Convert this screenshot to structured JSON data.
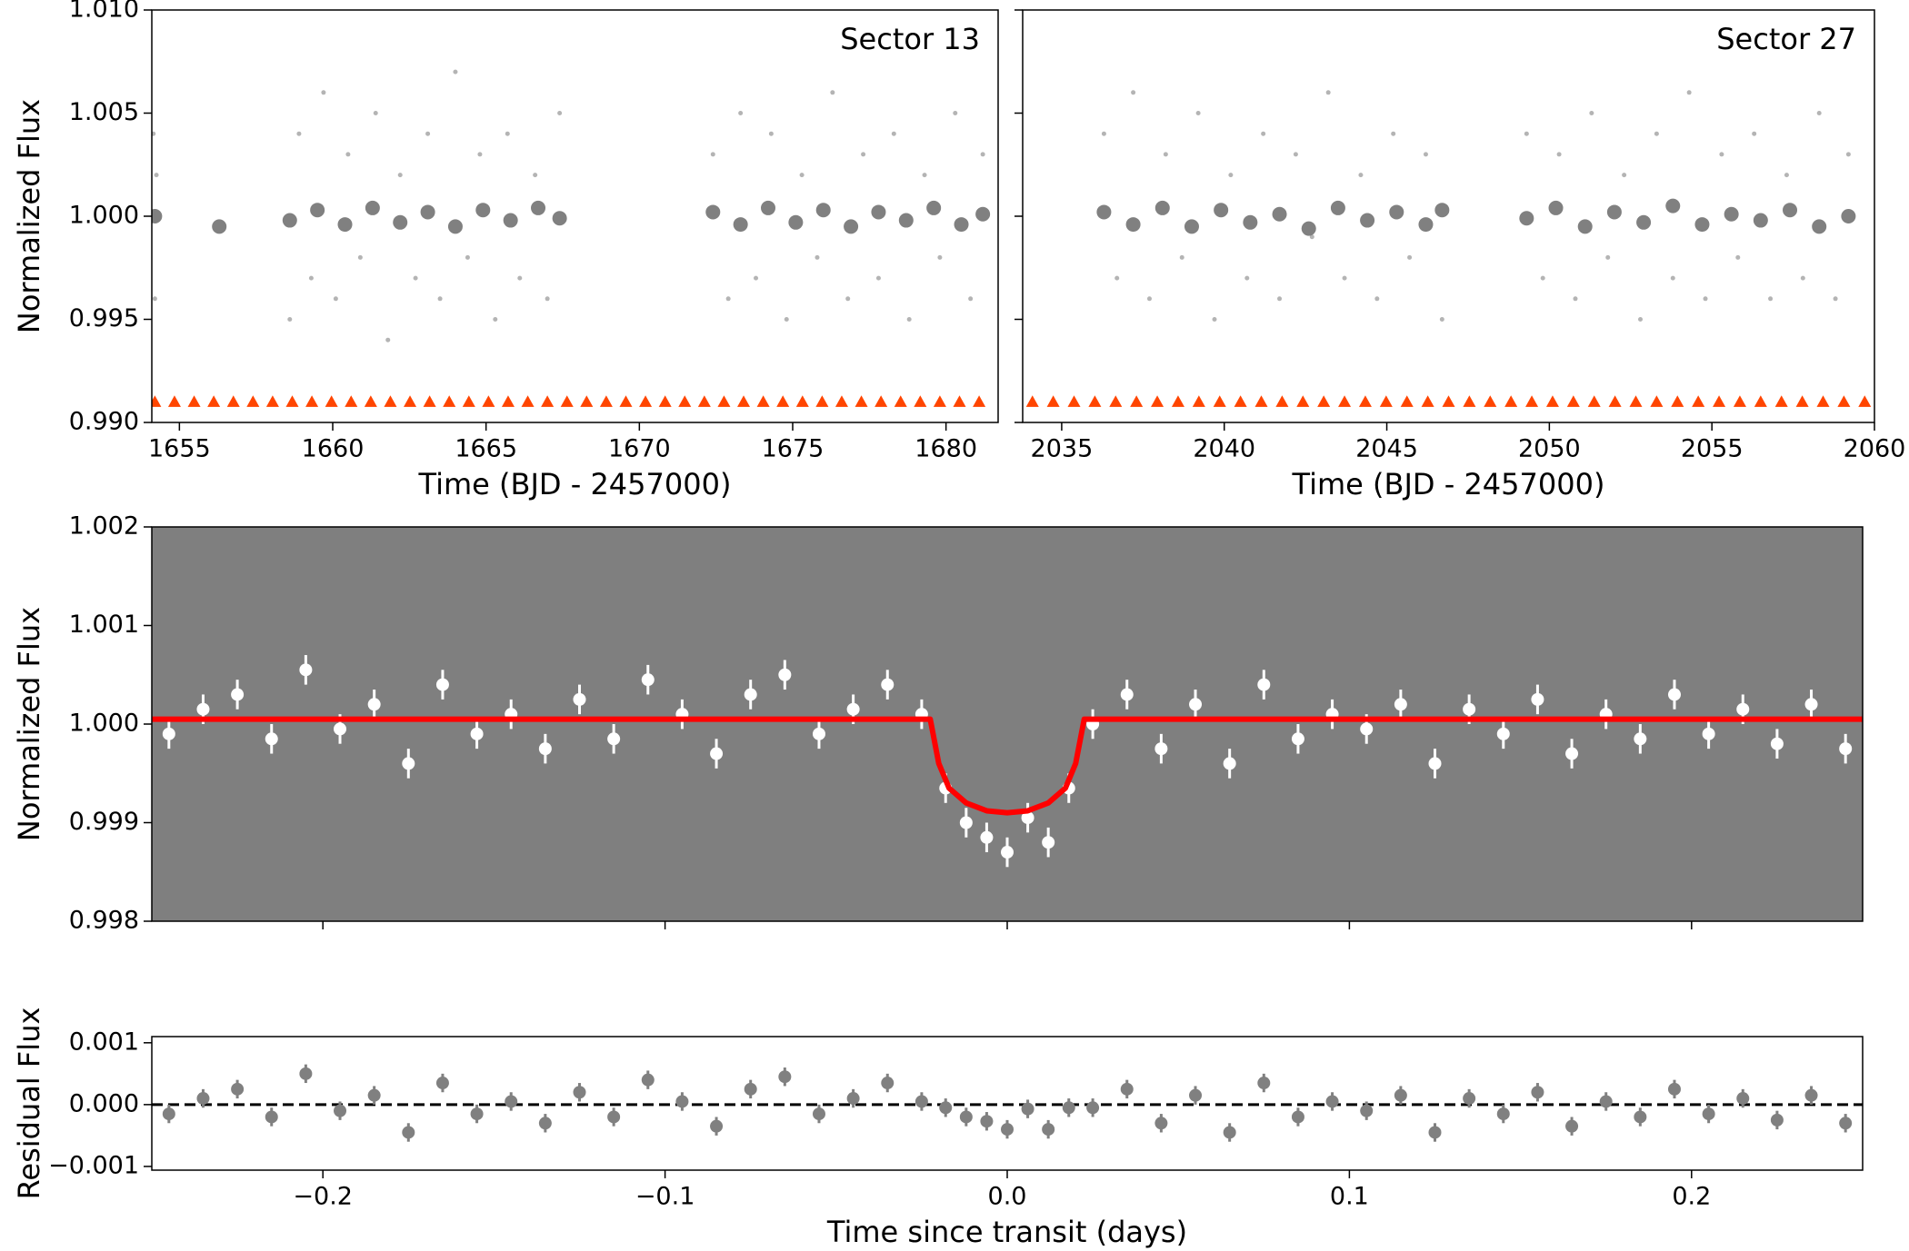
{
  "chart_data": [
    {
      "type": "scatter",
      "annotation": "Sector 13",
      "xlabel": "Time (BJD - 2457000)",
      "ylabel": "Normalized Flux",
      "xlim": [
        1654.1,
        1681.7
      ],
      "ylim": [
        0.99,
        1.01
      ],
      "xticks": [
        1655,
        1660,
        1665,
        1670,
        1675,
        1680
      ],
      "yticks": [
        {
          "value": 0.99,
          "label": "0.990"
        },
        0.995,
        {
          "value": 1.0,
          "label": "1.000"
        },
        1.005,
        {
          "value": 1.01,
          "label": "1.010"
        }
      ],
      "series": [
        {
          "marker": "o",
          "color": "#b4b4b4",
          "size": 2.5,
          "x": [
            1654.15,
            1654.2,
            1654.25,
            1658.6,
            1658.9,
            1659.3,
            1659.7,
            1660.1,
            1660.5,
            1660.9,
            1661.4,
            1661.8,
            1662.2,
            1662.7,
            1663.1,
            1663.5,
            1664.0,
            1664.4,
            1664.8,
            1665.3,
            1665.7,
            1666.1,
            1666.6,
            1667.0,
            1667.4,
            1672.4,
            1672.9,
            1673.3,
            1673.8,
            1674.3,
            1674.8,
            1675.3,
            1675.8,
            1676.3,
            1676.8,
            1677.3,
            1677.8,
            1678.3,
            1678.8,
            1679.3,
            1679.8,
            1680.3,
            1680.8,
            1681.2
          ],
          "values": [
            1.004,
            0.996,
            1.002,
            0.995,
            1.004,
            0.997,
            1.006,
            0.996,
            1.003,
            0.998,
            1.005,
            0.994,
            1.002,
            0.997,
            1.004,
            0.996,
            1.007,
            0.998,
            1.003,
            0.995,
            1.004,
            0.997,
            1.002,
            0.996,
            1.005,
            1.003,
            0.996,
            1.005,
            0.997,
            1.004,
            0.995,
            1.002,
            0.998,
            1.006,
            0.996,
            1.003,
            0.997,
            1.004,
            0.995,
            1.002,
            0.998,
            1.005,
            0.996,
            1.003
          ]
        },
        {
          "marker": "o",
          "color": "#808080",
          "size": 8,
          "x": [
            1654.2,
            1656.3,
            1658.6,
            1659.5,
            1660.4,
            1661.3,
            1662.2,
            1663.1,
            1664.0,
            1664.9,
            1665.8,
            1666.7,
            1667.4,
            1672.4,
            1673.3,
            1674.2,
            1675.1,
            1676.0,
            1676.9,
            1677.8,
            1678.7,
            1679.6,
            1680.5,
            1681.2
          ],
          "values": [
            1.0,
            0.9995,
            0.9998,
            1.0003,
            0.9996,
            1.0004,
            0.9997,
            1.0002,
            0.9995,
            1.0003,
            0.9998,
            1.0004,
            0.9999,
            1.0002,
            0.9996,
            1.0004,
            0.9997,
            1.0003,
            0.9995,
            1.0002,
            0.9998,
            1.0004,
            0.9996,
            1.0001
          ]
        },
        {
          "marker": "^",
          "color": "#ff4500",
          "size": 7,
          "level": 0.991,
          "x": [
            1654.2,
            1654.84,
            1655.48,
            1656.12,
            1656.76,
            1657.4,
            1658.04,
            1658.68,
            1659.32,
            1659.96,
            1660.6,
            1661.24,
            1661.88,
            1662.52,
            1663.16,
            1663.8,
            1664.44,
            1665.08,
            1665.72,
            1666.36,
            1667.0,
            1667.64,
            1668.28,
            1668.92,
            1669.56,
            1670.2,
            1670.84,
            1671.48,
            1672.12,
            1672.76,
            1673.4,
            1674.04,
            1674.68,
            1675.32,
            1675.96,
            1676.6,
            1677.24,
            1677.88,
            1678.52,
            1679.16,
            1679.8,
            1680.44,
            1681.08
          ]
        }
      ]
    },
    {
      "type": "scatter",
      "annotation": "Sector 27",
      "xlabel": "Time (BJD - 2457000)",
      "xlim": [
        2033.8,
        2060
      ],
      "ylim": [
        0.99,
        1.01
      ],
      "xticks": [
        2035,
        2040,
        2045,
        2050,
        2055,
        2060
      ],
      "yticks": [
        0.99,
        0.995,
        1.0,
        1.005,
        1.01
      ],
      "series": [
        {
          "marker": "o",
          "color": "#b4b4b4",
          "size": 2.5,
          "x": [
            2036.3,
            2036.7,
            2037.2,
            2037.7,
            2038.2,
            2038.7,
            2039.2,
            2039.7,
            2040.2,
            2040.7,
            2041.2,
            2041.7,
            2042.2,
            2042.7,
            2043.2,
            2043.7,
            2044.2,
            2044.7,
            2045.2,
            2045.7,
            2046.2,
            2046.7,
            2049.3,
            2049.8,
            2050.3,
            2050.8,
            2051.3,
            2051.8,
            2052.3,
            2052.8,
            2053.3,
            2053.8,
            2054.3,
            2054.8,
            2055.3,
            2055.8,
            2056.3,
            2056.8,
            2057.3,
            2057.8,
            2058.3,
            2058.8,
            2059.2
          ],
          "values": [
            1.004,
            0.997,
            1.006,
            0.996,
            1.003,
            0.998,
            1.005,
            0.995,
            1.002,
            0.997,
            1.004,
            0.996,
            1.003,
            0.999,
            1.006,
            0.997,
            1.002,
            0.996,
            1.004,
            0.998,
            1.003,
            0.995,
            1.004,
            0.997,
            1.003,
            0.996,
            1.005,
            0.998,
            1.002,
            0.995,
            1.004,
            0.997,
            1.006,
            0.996,
            1.003,
            0.998,
            1.004,
            0.996,
            1.002,
            0.997,
            1.005,
            0.996,
            1.003
          ]
        },
        {
          "marker": "o",
          "color": "#808080",
          "size": 8,
          "x": [
            2036.3,
            2037.2,
            2038.1,
            2039.0,
            2039.9,
            2040.8,
            2041.7,
            2042.6,
            2043.5,
            2044.4,
            2045.3,
            2046.2,
            2046.7,
            2049.3,
            2050.2,
            2051.1,
            2052.0,
            2052.9,
            2053.8,
            2054.7,
            2055.6,
            2056.5,
            2057.4,
            2058.3,
            2059.2
          ],
          "values": [
            1.0002,
            0.9996,
            1.0004,
            0.9995,
            1.0003,
            0.9997,
            1.0001,
            0.9994,
            1.0004,
            0.9998,
            1.0002,
            0.9996,
            1.0003,
            0.9999,
            1.0004,
            0.9995,
            1.0002,
            0.9997,
            1.0005,
            0.9996,
            1.0001,
            0.9998,
            1.0003,
            0.9995,
            1.0
          ]
        },
        {
          "marker": "^",
          "color": "#ff4500",
          "size": 7,
          "level": 0.991,
          "x": [
            2034.1,
            2034.74,
            2035.38,
            2036.02,
            2036.66,
            2037.3,
            2037.94,
            2038.58,
            2039.22,
            2039.86,
            2040.5,
            2041.14,
            2041.78,
            2042.42,
            2043.06,
            2043.7,
            2044.34,
            2044.98,
            2045.62,
            2046.26,
            2046.9,
            2047.54,
            2048.18,
            2048.82,
            2049.46,
            2050.1,
            2050.74,
            2051.38,
            2052.02,
            2052.66,
            2053.3,
            2053.94,
            2054.58,
            2055.22,
            2055.86,
            2056.5,
            2057.14,
            2057.78,
            2058.42,
            2059.06,
            2059.7
          ]
        }
      ]
    },
    {
      "type": "scatter",
      "ylabel": "Normalized Flux",
      "background": "#7f7f7f",
      "xlim": [
        -0.25,
        0.25
      ],
      "ylim": [
        0.998,
        1.002
      ],
      "xticks": [
        -0.2,
        -0.1,
        0,
        0.1,
        0.2
      ],
      "yticks": [
        {
          "value": 0.998,
          "label": "0.998"
        },
        0.999,
        {
          "value": 1.0,
          "label": "1.000"
        },
        1.001,
        1.002
      ],
      "series": [
        {
          "marker": "o",
          "color": "#ffffff",
          "size": 7,
          "error": 0.00015,
          "x": [
            -0.245,
            -0.235,
            -0.225,
            -0.215,
            -0.205,
            -0.195,
            -0.185,
            -0.175,
            -0.165,
            -0.155,
            -0.145,
            -0.135,
            -0.125,
            -0.115,
            -0.105,
            -0.095,
            -0.085,
            -0.075,
            -0.065,
            -0.055,
            -0.045,
            -0.035,
            -0.025,
            -0.018,
            -0.012,
            -0.006,
            0,
            0.006,
            0.012,
            0.018,
            0.025,
            0.035,
            0.045,
            0.055,
            0.065,
            0.075,
            0.085,
            0.095,
            0.105,
            0.115,
            0.125,
            0.135,
            0.145,
            0.155,
            0.165,
            0.175,
            0.185,
            0.195,
            0.205,
            0.215,
            0.225,
            0.235,
            0.245
          ],
          "values": [
            0.9999,
            1.00015,
            1.0003,
            0.99985,
            1.00055,
            0.99995,
            1.0002,
            0.9996,
            1.0004,
            0.9999,
            1.0001,
            0.99975,
            1.00025,
            0.99985,
            1.00045,
            1.0001,
            0.9997,
            1.0003,
            1.0005,
            0.9999,
            1.00015,
            1.0004,
            1.0001,
            0.99935,
            0.999,
            0.99885,
            0.9987,
            0.99905,
            0.9988,
            0.99935,
            1.0,
            1.0003,
            0.99975,
            1.0002,
            0.9996,
            1.0004,
            0.99985,
            1.0001,
            0.99995,
            1.0002,
            0.9996,
            1.00015,
            0.9999,
            1.00025,
            0.9997,
            1.0001,
            0.99985,
            1.0003,
            0.9999,
            1.00015,
            0.9998,
            1.0002,
            0.99975
          ]
        },
        {
          "marker": "line",
          "color": "#ff0000",
          "size": 6,
          "x": [
            -0.25,
            -0.0225,
            -0.02,
            -0.017,
            -0.012,
            -0.006,
            0,
            0.006,
            0.012,
            0.017,
            0.02,
            0.0225,
            0.25
          ],
          "values": [
            1.00005,
            1.00005,
            0.9996,
            0.99935,
            0.9992,
            0.99912,
            0.9991,
            0.99912,
            0.9992,
            0.99935,
            0.9996,
            1.00005,
            1.00005
          ]
        }
      ]
    },
    {
      "type": "scatter",
      "xlabel": "Time since transit (days)",
      "ylabel": "Residual Flux",
      "hline": 0,
      "xlim": [
        -0.25,
        0.25
      ],
      "ylim": [
        -0.00106,
        0.0011
      ],
      "xticks": [
        {
          "value": -0.2,
          "label": "−0.2"
        },
        {
          "value": -0.1,
          "label": "−0.1"
        },
        {
          "value": 0,
          "label": "0.0"
        },
        0.1,
        0.2
      ],
      "yticks": [
        {
          "value": -0.001,
          "label": "−0.001"
        },
        {
          "value": 0,
          "label": "0.000"
        },
        0.001
      ],
      "series": [
        {
          "marker": "o",
          "color": "#808080",
          "size": 7,
          "error": 0.00015,
          "x": [
            -0.245,
            -0.235,
            -0.225,
            -0.215,
            -0.205,
            -0.195,
            -0.185,
            -0.175,
            -0.165,
            -0.155,
            -0.145,
            -0.135,
            -0.125,
            -0.115,
            -0.105,
            -0.095,
            -0.085,
            -0.075,
            -0.065,
            -0.055,
            -0.045,
            -0.035,
            -0.025,
            -0.018,
            -0.012,
            -0.006,
            0,
            0.006,
            0.012,
            0.018,
            0.025,
            0.035,
            0.045,
            0.055,
            0.065,
            0.075,
            0.085,
            0.095,
            0.105,
            0.115,
            0.125,
            0.135,
            0.145,
            0.155,
            0.165,
            0.175,
            0.185,
            0.195,
            0.205,
            0.215,
            0.225,
            0.235,
            0.245
          ],
          "values": [
            -0.00015,
            0.0001,
            0.00025,
            -0.0002,
            0.0005,
            -0.0001,
            0.00015,
            -0.00045,
            0.00035,
            -0.00015,
            5e-05,
            -0.0003,
            0.0002,
            -0.0002,
            0.0004,
            5e-05,
            -0.00035,
            0.00025,
            0.00045,
            -0.00015,
            0.0001,
            0.00035,
            5e-05,
            -5e-05,
            -0.0002,
            -0.00027,
            -0.0004,
            -7e-05,
            -0.0004,
            -5e-05,
            -5e-05,
            0.00025,
            -0.0003,
            0.00015,
            -0.00045,
            0.00035,
            -0.0002,
            5e-05,
            -0.0001,
            0.00015,
            -0.00045,
            0.0001,
            -0.00015,
            0.0002,
            -0.00035,
            5e-05,
            -0.0002,
            0.00025,
            -0.00015,
            0.0001,
            -0.00025,
            0.00015,
            -0.0003
          ]
        }
      ]
    }
  ]
}
